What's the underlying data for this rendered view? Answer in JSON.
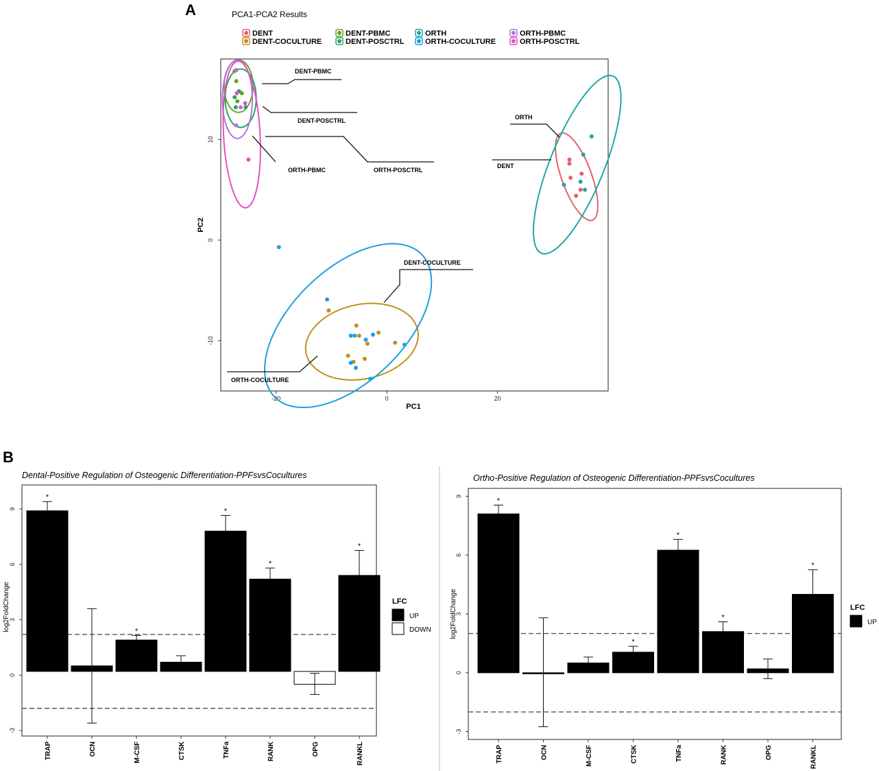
{
  "panels": {
    "a": "A",
    "b": "B"
  },
  "chart_data": [
    {
      "type": "scatter",
      "title": "PCA1-PCA2 Results",
      "xlabel": "PC1",
      "ylabel": "PC2",
      "xlim": [
        -30,
        40
      ],
      "ylim": [
        -15,
        18
      ],
      "xticks": [
        -20,
        0,
        20
      ],
      "yticks": [
        10,
        0,
        -10
      ],
      "grid": false,
      "legend_position": "top",
      "groups": [
        {
          "name": "DENT",
          "color": "#e4606c",
          "points": [
            [
              33,
              8
            ],
            [
              33,
              7.6
            ],
            [
              35.2,
              6.6
            ],
            [
              33.2,
              6.2
            ],
            [
              35,
              5
            ],
            [
              34.2,
              4.4
            ]
          ],
          "ellipse": {
            "center": [
              34.3,
              6.3
            ],
            "rx": 2.7,
            "ry": 4.6,
            "angle": -20
          }
        },
        {
          "name": "DENT-COCULTURE",
          "color": "#c0901e",
          "points": [
            [
              -10.5,
              -7
            ],
            [
              -5.5,
              -8.5
            ],
            [
              -5,
              -9.5
            ],
            [
              -1.5,
              -9.2
            ],
            [
              1.5,
              -10.2
            ],
            [
              -7,
              -11.5
            ],
            [
              -6,
              -12.1
            ],
            [
              -4,
              -11.8
            ],
            [
              -3.5,
              -10.3
            ]
          ],
          "ellipse": {
            "center": [
              -4.5,
              -10.1
            ],
            "rx": 10.3,
            "ry": 3.7,
            "angle": -12
          }
        },
        {
          "name": "DENT-PBMC",
          "color": "#6aa121",
          "points": [
            [
              -27.5,
              16.8
            ],
            [
              -27.2,
              15.8
            ],
            [
              -26.2,
              14.6
            ],
            [
              -27,
              13.8
            ]
          ],
          "ellipse": {
            "center": [
              -26.8,
              15.3
            ],
            "rx": 2.6,
            "ry": 2.6,
            "angle": 0
          }
        },
        {
          "name": "DENT-POSCTRL",
          "color": "#1fa860",
          "points": [
            [
              -26.7,
              14.8
            ],
            [
              -25.5,
              13.2
            ],
            [
              -27.5,
              14.2
            ],
            [
              -27.3,
              13.2
            ]
          ],
          "ellipse": {
            "center": [
              -26.4,
              14.1
            ],
            "rx": 2.8,
            "ry": 2.9,
            "angle": 0
          }
        },
        {
          "name": "ORTH",
          "color": "#1ea6a6",
          "points": [
            [
              37,
              10.3
            ],
            [
              35.5,
              8.5
            ],
            [
              32,
              5.5
            ],
            [
              35,
              5.8
            ],
            [
              35.8,
              5
            ]
          ],
          "ellipse": {
            "center": [
              34.4,
              7.5
            ],
            "rx": 4.9,
            "ry": 9.5,
            "angle": 22
          }
        },
        {
          "name": "ORTH-COCULTURE",
          "color": "#1d9de0",
          "points": [
            [
              -19.5,
              -0.7
            ],
            [
              -10.8,
              -5.9
            ],
            [
              -6.5,
              -9.5
            ],
            [
              -5.8,
              -9.5
            ],
            [
              -3.8,
              -9.9
            ],
            [
              3.2,
              -10.4
            ],
            [
              -6.5,
              -12.2
            ],
            [
              -5.6,
              -12.7
            ],
            [
              -3,
              -13.8
            ],
            [
              -2.5,
              -9.4
            ]
          ],
          "ellipse": {
            "center": [
              -7,
              -8.5
            ],
            "rx": 18.5,
            "ry": 5.6,
            "angle": -44
          }
        },
        {
          "name": "ORTH-PBMC",
          "color": "#b571e2",
          "points": [
            [
              -27.2,
              16.9
            ],
            [
              -26.4,
              13.2
            ],
            [
              -27.2,
              11.4
            ]
          ],
          "ellipse": {
            "center": [
              -27,
              14
            ],
            "rx": 2.7,
            "ry": 3.9,
            "angle": 0
          }
        },
        {
          "name": "ORTH-POSCTRL",
          "color": "#e64fbe",
          "points": [
            [
              -25.6,
              13.6
            ],
            [
              -25,
              8
            ],
            [
              -27.1,
              14.6
            ]
          ],
          "ellipse": {
            "center": [
              -26.2,
              10.5
            ],
            "rx": 3.3,
            "ry": 7.3,
            "angle": -3
          }
        }
      ],
      "annotations": [
        "DENT-PBMC",
        "DENT-POSCTRL",
        "ORTH-PBMC",
        "ORTH-POSCTRL",
        "ORTH",
        "DENT",
        "DENT-COCULTURE",
        "ORTH-COCULTURE"
      ]
    },
    {
      "type": "bar",
      "title": "Dental-Positive Regulation of Osteogenic Differentiation-PPFsvsCocultures",
      "xlabel": "",
      "ylabel": "log2FoldChange",
      "ylim": [
        -3.3,
        10.3
      ],
      "yticks": [
        -3,
        0,
        3,
        6,
        9
      ],
      "baseline": 0.2,
      "categories": [
        "TRAP",
        "OCN",
        "M-CSF",
        "CTSK",
        "TNFa",
        "RANK",
        "OPG",
        "RANKL"
      ],
      "values": [
        8.9,
        0.5,
        1.9,
        0.7,
        7.8,
        5.2,
        -0.5,
        5.4
      ],
      "error_high": [
        9.4,
        3.6,
        2.15,
        1.05,
        8.65,
        5.8,
        0.1,
        6.75
      ],
      "error_low": [
        null,
        -2.6,
        null,
        null,
        null,
        null,
        -1.05,
        null
      ],
      "significant": [
        true,
        false,
        true,
        false,
        true,
        true,
        false,
        true
      ],
      "direction": [
        "UP",
        "UP",
        "UP",
        "UP",
        "UP",
        "UP",
        "DOWN",
        "UP"
      ],
      "threshold_lines": [
        2.2,
        -1.8
      ],
      "legend": {
        "title": "LFC",
        "items": [
          "UP",
          "DOWN"
        ]
      }
    },
    {
      "type": "bar",
      "title": "Ortho-Positive Regulation of Osteogenic Differentiation-PPFsvsCocultures",
      "xlabel": "",
      "ylabel": "log2FoldChange",
      "ylim": [
        -3.4,
        9.4
      ],
      "yticks": [
        -3,
        0,
        3,
        6,
        9
      ],
      "baseline": 0,
      "categories": [
        "TRAP",
        "OCN",
        "M-CSF",
        "CTSK",
        "TNFa",
        "RANK",
        "OPG",
        "RANKL"
      ],
      "values": [
        8.1,
        0,
        0.5,
        1.05,
        6.25,
        2.1,
        0.2,
        4.0
      ],
      "error_high": [
        8.55,
        2.8,
        0.8,
        1.35,
        6.8,
        2.6,
        0.7,
        5.25
      ],
      "error_low": [
        null,
        -2.75,
        null,
        null,
        null,
        null,
        -0.3,
        null
      ],
      "significant": [
        true,
        false,
        false,
        true,
        true,
        true,
        false,
        true
      ],
      "direction": [
        "UP",
        "UP",
        "UP",
        "UP",
        "UP",
        "UP",
        "UP",
        "UP"
      ],
      "threshold_lines": [
        2.0,
        -2.0
      ],
      "legend": {
        "title": "LFC",
        "items": [
          "UP"
        ]
      }
    }
  ]
}
